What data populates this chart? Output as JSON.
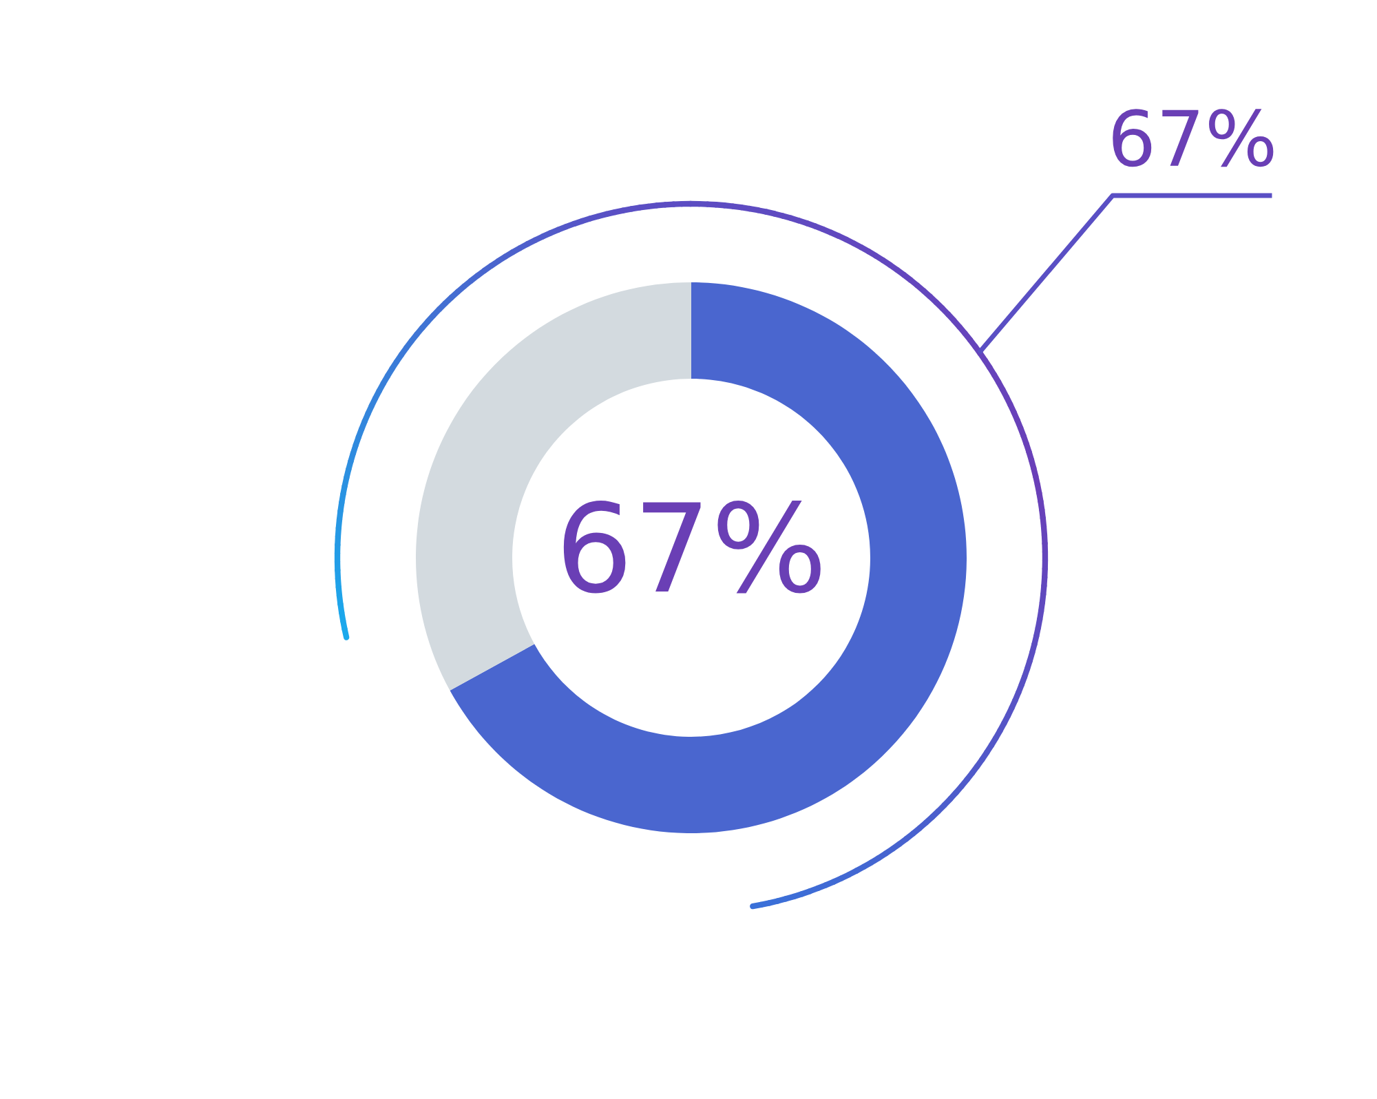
{
  "chart_data": {
    "type": "donut",
    "categories": [
      null,
      null
    ],
    "values": [
      67,
      33
    ],
    "colors": [
      "#4a66cf",
      "#d3dadf"
    ],
    "annotations": [
      "67%",
      "67%"
    ]
  }
}
